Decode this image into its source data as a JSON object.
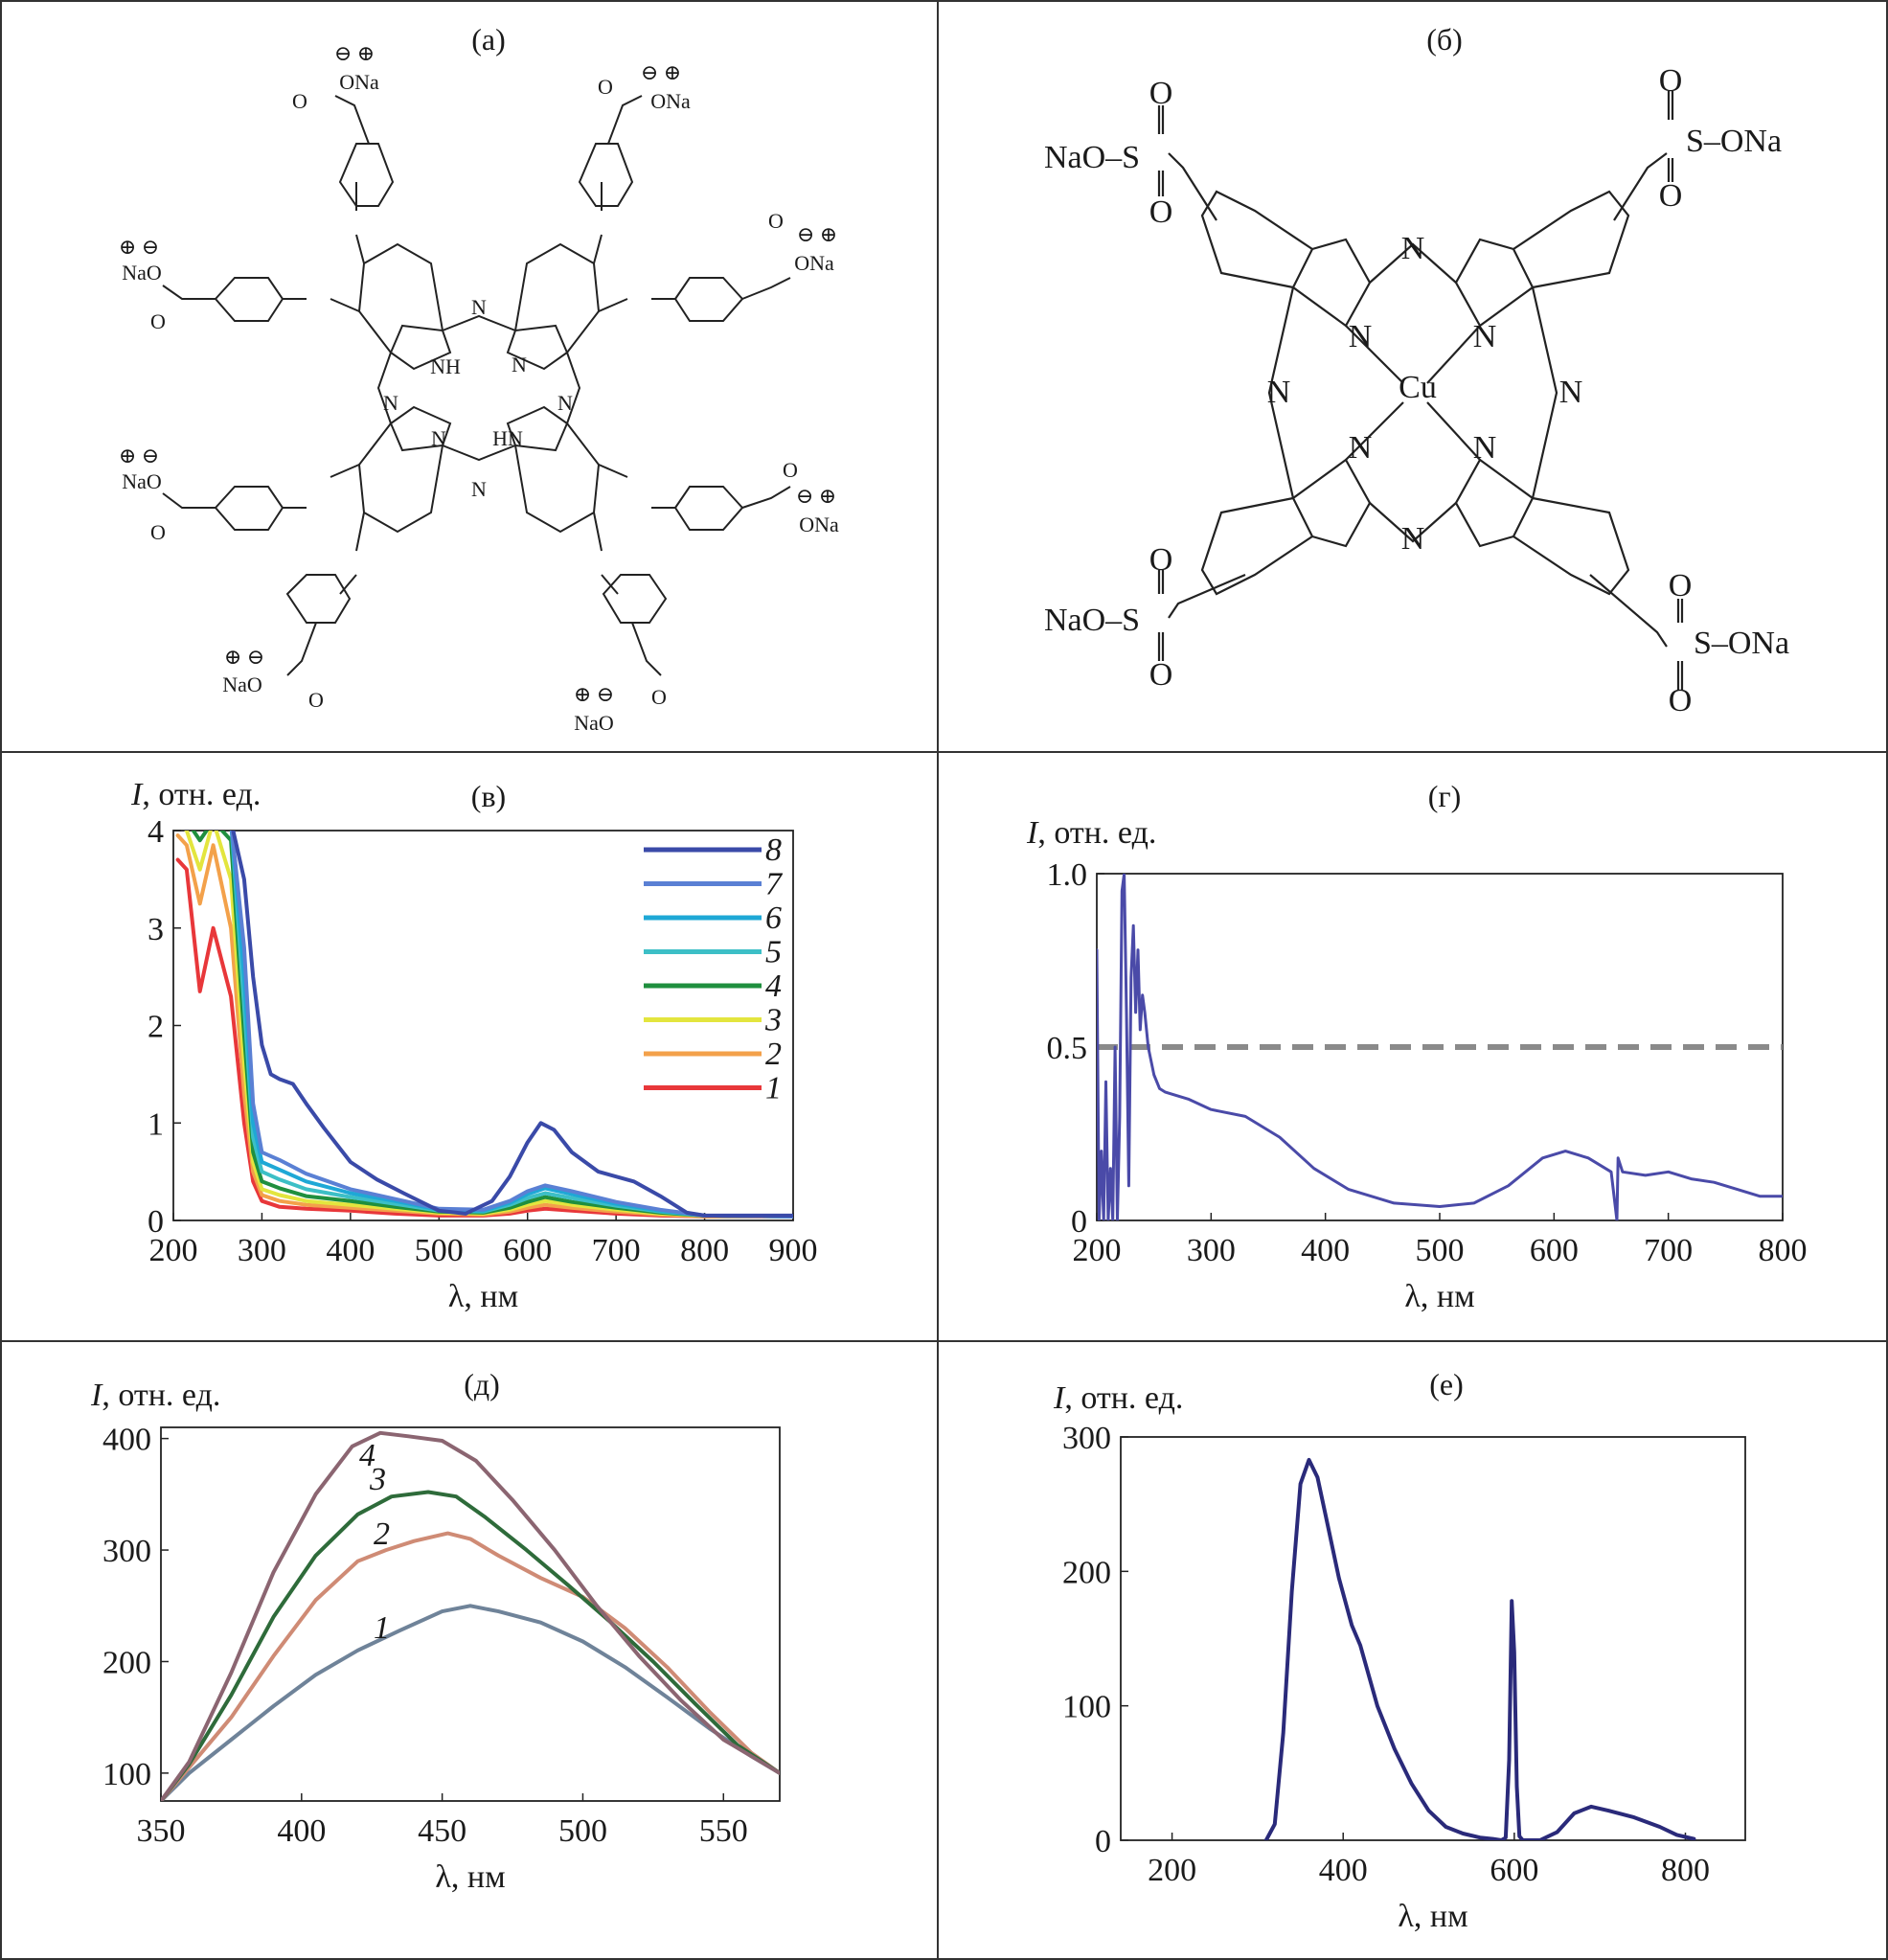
{
  "panels": {
    "a": {
      "label": "(а)"
    },
    "b": {
      "label": "(б)"
    },
    "v": {
      "label": "(в)"
    },
    "g": {
      "label": "(г)"
    },
    "d": {
      "label": "(д)"
    },
    "e": {
      "label": "(е)"
    }
  },
  "chem_a": {
    "ona": "ONa",
    "nao": "NaO",
    "o": "O",
    "n": "N",
    "nh": "NH",
    "hn": "HN",
    "minus": "⊖",
    "plus": "⊕"
  },
  "chem_b": {
    "nao_s": "NaO–S",
    "s_ona": "S–ONa",
    "o": "O",
    "n": "N",
    "cu": "Cu"
  },
  "chart_data": [
    {
      "panel": "(в)",
      "type": "line",
      "ylabel_var": "I",
      "ylabel_unit": ", отн. ед.",
      "xlabel": "λ, нм",
      "xlim": [
        200,
        900
      ],
      "ylim": [
        0,
        4
      ],
      "xticks": [
        200,
        300,
        400,
        500,
        600,
        700,
        800,
        900
      ],
      "yticks": [
        0,
        1,
        2,
        3,
        4
      ],
      "legend_position": "top-right",
      "series": [
        {
          "name": "1",
          "color": "#e8373a",
          "x": [
            205,
            215,
            230,
            245,
            265,
            280,
            290,
            300,
            320,
            350,
            400,
            450,
            500,
            550,
            580,
            600,
            620,
            650,
            700,
            750,
            800,
            900
          ],
          "y": [
            3.7,
            3.6,
            2.35,
            3.0,
            2.3,
            1.0,
            0.4,
            0.2,
            0.14,
            0.12,
            0.1,
            0.07,
            0.05,
            0.05,
            0.07,
            0.1,
            0.12,
            0.1,
            0.07,
            0.05,
            0.04,
            0.04
          ]
        },
        {
          "name": "2",
          "color": "#f3a14a",
          "x": [
            205,
            215,
            230,
            245,
            265,
            280,
            290,
            300,
            320,
            350,
            400,
            450,
            500,
            550,
            580,
            600,
            620,
            650,
            700,
            750,
            800,
            900
          ],
          "y": [
            3.95,
            3.85,
            3.25,
            3.85,
            3.0,
            1.3,
            0.5,
            0.26,
            0.2,
            0.16,
            0.13,
            0.1,
            0.07,
            0.06,
            0.09,
            0.13,
            0.16,
            0.13,
            0.09,
            0.06,
            0.04,
            0.04
          ]
        },
        {
          "name": "3",
          "color": "#e3e53e",
          "x": [
            205,
            215,
            230,
            245,
            265,
            280,
            290,
            300,
            320,
            350,
            400,
            450,
            500,
            550,
            580,
            600,
            620,
            650,
            700,
            750,
            800,
            900
          ],
          "y": [
            4.1,
            4.0,
            3.6,
            4.1,
            3.5,
            1.6,
            0.6,
            0.32,
            0.26,
            0.2,
            0.16,
            0.12,
            0.08,
            0.07,
            0.11,
            0.16,
            0.2,
            0.16,
            0.11,
            0.07,
            0.05,
            0.04
          ]
        },
        {
          "name": "4",
          "color": "#1f8f3e",
          "x": [
            205,
            215,
            230,
            245,
            265,
            280,
            290,
            300,
            320,
            350,
            400,
            450,
            500,
            550,
            580,
            600,
            620,
            650,
            700,
            750,
            800,
            900
          ],
          "y": [
            4.1,
            4.1,
            3.9,
            4.1,
            3.9,
            1.9,
            0.7,
            0.4,
            0.33,
            0.25,
            0.2,
            0.14,
            0.09,
            0.08,
            0.13,
            0.19,
            0.24,
            0.19,
            0.13,
            0.08,
            0.05,
            0.04
          ]
        },
        {
          "name": "5",
          "color": "#3cbfc6",
          "x": [
            205,
            215,
            230,
            245,
            265,
            280,
            290,
            300,
            320,
            350,
            400,
            450,
            500,
            550,
            580,
            600,
            620,
            650,
            700,
            750,
            800,
            900
          ],
          "y": [
            4.1,
            4.1,
            4.1,
            4.1,
            4.1,
            2.2,
            0.85,
            0.5,
            0.42,
            0.32,
            0.24,
            0.17,
            0.1,
            0.09,
            0.16,
            0.23,
            0.28,
            0.23,
            0.15,
            0.09,
            0.05,
            0.04
          ]
        },
        {
          "name": "6",
          "color": "#1ea8d6",
          "x": [
            205,
            215,
            230,
            245,
            265,
            280,
            290,
            300,
            320,
            350,
            400,
            450,
            500,
            550,
            580,
            600,
            620,
            650,
            700,
            750,
            800,
            900
          ],
          "y": [
            4.1,
            4.1,
            4.1,
            4.1,
            4.1,
            2.5,
            1.0,
            0.6,
            0.52,
            0.4,
            0.28,
            0.2,
            0.11,
            0.1,
            0.18,
            0.27,
            0.33,
            0.27,
            0.17,
            0.1,
            0.05,
            0.04
          ]
        },
        {
          "name": "7",
          "color": "#5a80d4",
          "x": [
            205,
            215,
            230,
            245,
            265,
            280,
            290,
            300,
            320,
            350,
            400,
            450,
            500,
            550,
            580,
            600,
            620,
            650,
            700,
            750,
            800,
            900
          ],
          "y": [
            4.1,
            4.1,
            4.1,
            4.1,
            4.1,
            2.8,
            1.2,
            0.7,
            0.62,
            0.48,
            0.32,
            0.22,
            0.12,
            0.11,
            0.2,
            0.3,
            0.36,
            0.3,
            0.19,
            0.11,
            0.05,
            0.04
          ]
        },
        {
          "name": "8",
          "color": "#3a4aa8",
          "x": [
            205,
            215,
            230,
            245,
            265,
            280,
            290,
            300,
            310,
            320,
            335,
            350,
            370,
            400,
            430,
            460,
            500,
            530,
            560,
            580,
            600,
            615,
            630,
            650,
            680,
            720,
            750,
            780,
            800,
            900
          ],
          "y": [
            4.1,
            4.1,
            4.1,
            4.1,
            4.1,
            3.5,
            2.5,
            1.8,
            1.5,
            1.45,
            1.4,
            1.2,
            0.95,
            0.6,
            0.42,
            0.28,
            0.1,
            0.07,
            0.2,
            0.45,
            0.8,
            1.0,
            0.93,
            0.7,
            0.5,
            0.4,
            0.25,
            0.08,
            0.05,
            0.05
          ]
        }
      ]
    },
    {
      "panel": "(г)",
      "type": "line",
      "ylabel_var": "I",
      "ylabel_unit": ", отн. ед.",
      "xlabel": "λ, нм",
      "xlim": [
        200,
        800
      ],
      "ylim": [
        0,
        1.0
      ],
      "xticks": [
        200,
        300,
        400,
        500,
        600,
        700,
        800
      ],
      "yticks": [
        0,
        0.5,
        1.0
      ],
      "ytick_labels": [
        "0",
        "0.5",
        "1.0"
      ],
      "reference_line": {
        "y": 0.5,
        "style": "dashed",
        "color": "#8a8a8a"
      },
      "series": [
        {
          "color": "#4a4aa8",
          "x": [
            200,
            202,
            204,
            206,
            208,
            210,
            212,
            214,
            216,
            218,
            220,
            222,
            224,
            226,
            228,
            230,
            232,
            234,
            236,
            238,
            240,
            242,
            245,
            250,
            255,
            260,
            280,
            300,
            330,
            360,
            390,
            420,
            460,
            500,
            530,
            560,
            590,
            610,
            630,
            650,
            655,
            656,
            660,
            680,
            700,
            720,
            740,
            760,
            780,
            800
          ],
          "y": [
            0.78,
            0.0,
            0.2,
            0.0,
            0.4,
            0.0,
            0.15,
            0.0,
            0.5,
            0.0,
            0.3,
            0.95,
            1.0,
            0.6,
            0.1,
            0.7,
            0.85,
            0.6,
            0.78,
            0.55,
            0.65,
            0.6,
            0.5,
            0.42,
            0.38,
            0.37,
            0.35,
            0.32,
            0.3,
            0.24,
            0.15,
            0.09,
            0.05,
            0.04,
            0.05,
            0.1,
            0.18,
            0.2,
            0.18,
            0.14,
            0.0,
            0.18,
            0.14,
            0.13,
            0.14,
            0.12,
            0.11,
            0.09,
            0.07,
            0.07
          ]
        }
      ]
    },
    {
      "panel": "(д)",
      "type": "line",
      "ylabel_var": "I",
      "ylabel_unit": ", отн. ед.",
      "xlabel": "λ, нм",
      "xlim": [
        350,
        570
      ],
      "ylim": [
        75,
        410
      ],
      "xticks": [
        350,
        400,
        450,
        500,
        550
      ],
      "yticks": [
        100,
        200,
        300,
        400
      ],
      "series": [
        {
          "name": "1",
          "color": "#6f8399",
          "x": [
            350,
            360,
            375,
            390,
            405,
            420,
            435,
            450,
            460,
            470,
            485,
            500,
            515,
            530,
            545,
            560,
            570
          ],
          "y": [
            75,
            100,
            130,
            160,
            188,
            210,
            228,
            245,
            250,
            245,
            235,
            218,
            195,
            168,
            140,
            115,
            100
          ]
        },
        {
          "name": "2",
          "color": "#cf8b75",
          "x": [
            350,
            360,
            375,
            390,
            405,
            420,
            430,
            440,
            452,
            460,
            470,
            485,
            500,
            515,
            530,
            545,
            560,
            570
          ],
          "y": [
            75,
            105,
            150,
            205,
            255,
            290,
            300,
            308,
            315,
            310,
            295,
            275,
            258,
            230,
            195,
            155,
            118,
            100
          ]
        },
        {
          "name": "3",
          "color": "#2e6b3a",
          "x": [
            350,
            360,
            375,
            390,
            405,
            420,
            432,
            445,
            455,
            465,
            480,
            495,
            510,
            525,
            540,
            555,
            570
          ],
          "y": [
            75,
            108,
            170,
            240,
            295,
            332,
            348,
            352,
            348,
            330,
            300,
            268,
            235,
            200,
            162,
            125,
            100
          ]
        },
        {
          "name": "4",
          "color": "#8b6571",
          "x": [
            350,
            360,
            375,
            390,
            405,
            418,
            428,
            438,
            450,
            462,
            475,
            490,
            505,
            520,
            535,
            550,
            570
          ],
          "y": [
            75,
            110,
            190,
            280,
            350,
            393,
            405,
            402,
            398,
            380,
            345,
            300,
            250,
            205,
            165,
            130,
            100
          ]
        }
      ]
    },
    {
      "panel": "(е)",
      "type": "line",
      "ylabel_var": "I",
      "ylabel_unit": ", отн. ед.",
      "xlabel": "λ, нм",
      "xlim": [
        140,
        870
      ],
      "ylim": [
        0,
        300
      ],
      "xticks": [
        200,
        400,
        600,
        800
      ],
      "yticks": [
        0,
        100,
        200,
        300
      ],
      "series": [
        {
          "color": "#2a2a7a",
          "x": [
            310,
            320,
            330,
            340,
            350,
            360,
            370,
            380,
            395,
            410,
            420,
            440,
            460,
            480,
            500,
            520,
            540,
            560,
            575,
            585,
            590,
            594,
            597,
            600,
            603,
            606,
            610,
            630,
            650,
            670,
            690,
            710,
            740,
            770,
            790,
            810
          ],
          "y": [
            0,
            12,
            80,
            185,
            265,
            283,
            270,
            240,
            195,
            160,
            145,
            100,
            68,
            42,
            22,
            10,
            5,
            2,
            1,
            0,
            2,
            60,
            178,
            140,
            40,
            3,
            0,
            0,
            6,
            20,
            25,
            22,
            17,
            10,
            4,
            1
          ]
        }
      ]
    }
  ]
}
